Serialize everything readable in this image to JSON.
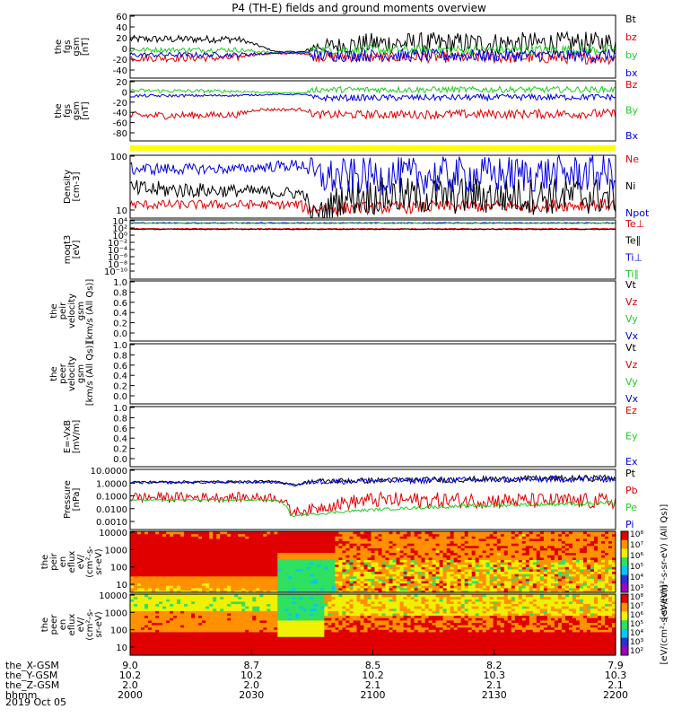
{
  "title": "P4 (TH-E) fields and ground moments overview",
  "x_axis": {
    "rows": [
      {
        "name": "the_X-GSM",
        "values": [
          "9.0",
          "8.7",
          "8.5",
          "8.2",
          "7.9"
        ]
      },
      {
        "name": "the_Y-GSM",
        "values": [
          "10.2",
          "10.2",
          "10.2",
          "10.3",
          "10.3"
        ]
      },
      {
        "name": "the_Z-GSM",
        "values": [
          "2.0",
          "2.0",
          "2.1",
          "2.1",
          "2.1"
        ]
      },
      {
        "name": "hhmm",
        "values": [
          "2000",
          "2030",
          "2100",
          "2130",
          "2200"
        ]
      }
    ],
    "date": "2019 Oct 05"
  },
  "colors": {
    "black": "#000000",
    "red": "#e00000",
    "green": "#22cc22",
    "blue": "#0000e0",
    "yellow": "#ffff00"
  },
  "chart_data": [
    {
      "type": "line",
      "ylabel": [
        "the",
        "fgs",
        "gsm",
        "[nT]"
      ],
      "ylim": [
        -40,
        60
      ],
      "yticks": [
        "60",
        "40",
        "20",
        "0",
        "-20",
        "-40"
      ],
      "series": [
        {
          "name": "Bt",
          "color": "black",
          "profile": [
            [
              0,
              22,
              6
            ],
            [
              0.22,
              22,
              6
            ],
            [
              0.24,
              18,
              3
            ],
            [
              0.3,
              2,
              1
            ],
            [
              0.36,
              2,
              1
            ],
            [
              0.38,
              10,
              10
            ],
            [
              0.5,
              15,
              18
            ],
            [
              0.7,
              15,
              18
            ],
            [
              1,
              16,
              18
            ]
          ]
        },
        {
          "name": "bz",
          "color": "red",
          "profile": [
            [
              0,
              -8,
              6
            ],
            [
              0.22,
              -8,
              6
            ],
            [
              0.24,
              -3,
              3
            ],
            [
              0.3,
              -1,
              1
            ],
            [
              0.36,
              -1,
              1
            ],
            [
              0.38,
              -6,
              8
            ],
            [
              1,
              -8,
              10
            ]
          ]
        },
        {
          "name": "by",
          "color": "green",
          "profile": [
            [
              0,
              5,
              4
            ],
            [
              0.22,
              5,
              4
            ],
            [
              0.3,
              0,
              1
            ],
            [
              0.36,
              0,
              1
            ],
            [
              0.38,
              5,
              8
            ],
            [
              1,
              5,
              8
            ]
          ]
        },
        {
          "name": "bx",
          "color": "blue",
          "profile": [
            [
              0,
              -3,
              4
            ],
            [
              0.22,
              -3,
              4
            ],
            [
              0.3,
              0,
              1
            ],
            [
              0.36,
              0,
              1
            ],
            [
              0.38,
              -4,
              10
            ],
            [
              1,
              -4,
              10
            ]
          ]
        }
      ]
    },
    {
      "type": "line",
      "ylabel": [
        "the",
        "fgs",
        "gsm",
        "[nT]"
      ],
      "ylim": [
        -90,
        25
      ],
      "yticks": [
        "20",
        "0",
        "-20",
        "-40",
        "-60",
        "-80"
      ],
      "series": [
        {
          "name": "Bz",
          "color": "red",
          "profile": [
            [
              0,
              -42,
              8
            ],
            [
              0.22,
              -40,
              6
            ],
            [
              0.26,
              -30,
              3
            ],
            [
              0.36,
              -30,
              3
            ],
            [
              0.38,
              -40,
              8
            ],
            [
              1,
              -38,
              9
            ]
          ]
        },
        {
          "name": "By",
          "color": "green",
          "profile": [
            [
              0,
              6,
              4
            ],
            [
              0.22,
              5,
              3
            ],
            [
              0.3,
              2,
              1
            ],
            [
              0.36,
              2,
              1
            ],
            [
              0.38,
              8,
              6
            ],
            [
              1,
              8,
              6
            ]
          ]
        },
        {
          "name": "Bx",
          "color": "blue",
          "profile": [
            [
              0,
              -4,
              3
            ],
            [
              0.22,
              -3,
              2
            ],
            [
              0.3,
              -1,
              1
            ],
            [
              0.36,
              -1,
              1
            ],
            [
              0.38,
              -8,
              6
            ],
            [
              1,
              -6,
              6
            ]
          ]
        }
      ]
    },
    {
      "type": "line",
      "ylabel": [
        "Density",
        "[cm-3]"
      ],
      "yscale": "log",
      "ylim": [
        3,
        300
      ],
      "yticks": [
        "100",
        "10"
      ],
      "series": [
        {
          "name": "Ne",
          "color": "red",
          "profile": [
            [
              0,
              8,
              0.15
            ],
            [
              0.35,
              8,
              0.15
            ],
            [
              0.36,
              6,
              0.2
            ],
            [
              1,
              8,
              0.2
            ]
          ]
        },
        {
          "name": "Ni",
          "color": "black",
          "profile": [
            [
              0,
              25,
              0.3
            ],
            [
              0.22,
              22,
              0.2
            ],
            [
              0.36,
              18,
              0.2
            ],
            [
              0.37,
              4,
              0.2
            ],
            [
              0.4,
              5,
              0.4
            ],
            [
              0.45,
              15,
              0.6
            ],
            [
              1,
              15,
              0.6
            ]
          ]
        },
        {
          "name": "Npot",
          "color": "blue",
          "profile": [
            [
              0,
              110,
              0.2
            ],
            [
              0.22,
              110,
              0.15
            ],
            [
              0.36,
              150,
              0.2
            ],
            [
              0.38,
              60,
              0.6
            ],
            [
              1,
              80,
              0.6
            ]
          ]
        }
      ]
    },
    {
      "type": "line",
      "ylabel": [
        "moqt3",
        "[eV]"
      ],
      "yscale": "log",
      "ylim": [
        1e-10,
        10000.0
      ],
      "yticks": [
        "10⁴",
        "10²",
        "10⁰",
        "10⁻²",
        "10⁻⁴",
        "10⁻⁶",
        "10⁻⁸",
        "10⁻¹⁰"
      ],
      "series": [
        {
          "name": "Te⊥",
          "color": "red",
          "profile": [
            [
              0,
              80,
              0.1
            ],
            [
              1,
              80,
              0.1
            ]
          ]
        },
        {
          "name": "Te∥",
          "color": "black",
          "profile": [
            [
              0,
              60,
              0.1
            ],
            [
              1,
              60,
              0.1
            ]
          ]
        },
        {
          "name": "Ti⊥",
          "color": "blue",
          "profile": [
            [
              0,
              2000,
              0.1
            ],
            [
              1,
              2000,
              0.1
            ]
          ]
        },
        {
          "name": "Ti∥",
          "color": "green",
          "profile": [
            [
              0,
              1500,
              0.1
            ],
            [
              1,
              1500,
              0.1
            ]
          ]
        }
      ]
    },
    {
      "type": "line",
      "ylabel": [
        "the",
        "peir",
        "velocity",
        "gsm",
        "[km/s (All Qs)]"
      ],
      "ylim": [
        0,
        1
      ],
      "yticks": [
        "1.0",
        "0.8",
        "0.6",
        "0.4",
        "0.2",
        "0.0"
      ],
      "series": [
        {
          "name": "Vt",
          "color": "black"
        },
        {
          "name": "Vz",
          "color": "red"
        },
        {
          "name": "Vy",
          "color": "green"
        },
        {
          "name": "Vx",
          "color": "blue"
        }
      ]
    },
    {
      "type": "line",
      "ylabel": [
        "the",
        "peer",
        "velocity",
        "gsm",
        "[km/s (All Qs)]"
      ],
      "ylim": [
        0,
        1
      ],
      "yticks": [
        "1.0",
        "0.8",
        "0.6",
        "0.4",
        "0.2",
        "0.0"
      ],
      "series": [
        {
          "name": "Vt",
          "color": "black"
        },
        {
          "name": "Vz",
          "color": "red"
        },
        {
          "name": "Vy",
          "color": "green"
        },
        {
          "name": "Vx",
          "color": "blue"
        }
      ]
    },
    {
      "type": "line",
      "ylabel": [
        "E=-VxB",
        "[mV/m]"
      ],
      "ylim": [
        0,
        1
      ],
      "yticks": [
        "1.0",
        "0.8",
        "0.6",
        "0.4",
        "0.2",
        "0.0"
      ],
      "series": [
        {
          "name": "Ez",
          "color": "red"
        },
        {
          "name": "Ey",
          "color": "green"
        },
        {
          "name": "Ex",
          "color": "blue"
        }
      ]
    },
    {
      "type": "line",
      "ylabel": [
        "Pressure",
        "[nPa]"
      ],
      "yscale": "log",
      "ylim": [
        0.0003,
        10
      ],
      "yticks": [
        "10.0000",
        "1.0000",
        "0.1000",
        "0.0100",
        "0.0010"
      ],
      "series": [
        {
          "name": "Pt",
          "color": "black",
          "profile": [
            [
              0,
              1.1,
              0.1
            ],
            [
              0.3,
              1.2,
              0.1
            ],
            [
              0.34,
              0.7,
              0.05
            ],
            [
              0.38,
              1.3,
              0.2
            ],
            [
              1,
              2.2,
              0.25
            ]
          ]
        },
        {
          "name": "Pb",
          "color": "red",
          "profile": [
            [
              0,
              0.08,
              0.4
            ],
            [
              0.3,
              0.08,
              0.35
            ],
            [
              0.33,
              0.006,
              0.3
            ],
            [
              0.38,
              0.01,
              0.45
            ],
            [
              0.5,
              0.05,
              0.6
            ],
            [
              1,
              0.04,
              0.6
            ]
          ]
        },
        {
          "name": "Pe",
          "color": "green",
          "profile": [
            [
              0,
              0.05,
              0.05
            ],
            [
              0.3,
              0.05,
              0.05
            ],
            [
              0.33,
              0.003,
              0.05
            ],
            [
              0.4,
              0.005,
              0.1
            ],
            [
              1,
              0.03,
              0.15
            ]
          ]
        },
        {
          "name": "Pi",
          "color": "blue",
          "profile": [
            [
              0,
              1.0,
              0.1
            ],
            [
              0.3,
              1.1,
              0.1
            ],
            [
              0.34,
              0.6,
              0.05
            ],
            [
              0.38,
              1.2,
              0.2
            ],
            [
              1,
              2.0,
              0.25
            ]
          ]
        }
      ]
    },
    {
      "type": "heatmap",
      "ylabel": [
        "the",
        "peir",
        "en",
        "eflux",
        "eV/",
        "(cm²-s-",
        "sr-eV)"
      ],
      "yscale": "log",
      "ylim": [
        5,
        30000
      ],
      "yticks": [
        "10000",
        "1000",
        "100",
        "10"
      ],
      "colorbar": {
        "label": "[eV/(cm²-s-sr-eV) (All Qs)]",
        "ticks": [
          "10⁸",
          "10⁷",
          "10⁶",
          "10⁵",
          "10⁴",
          "10³"
        ]
      }
    },
    {
      "type": "heatmap",
      "ylabel": [
        "the",
        "peer",
        "en",
        "eflux",
        "eV/",
        "(cm²-s-",
        "sr-eV)"
      ],
      "yscale": "log",
      "ylim": [
        5,
        30000
      ],
      "yticks": [
        "10000",
        "1000",
        "100",
        "10"
      ],
      "colorbar": {
        "label": "[eV/(cm²-s-sr-eV)]",
        "ticks": [
          "10⁸",
          "10⁷",
          "10⁶",
          "10⁵",
          "10⁴",
          "10³",
          "10²"
        ]
      }
    }
  ]
}
